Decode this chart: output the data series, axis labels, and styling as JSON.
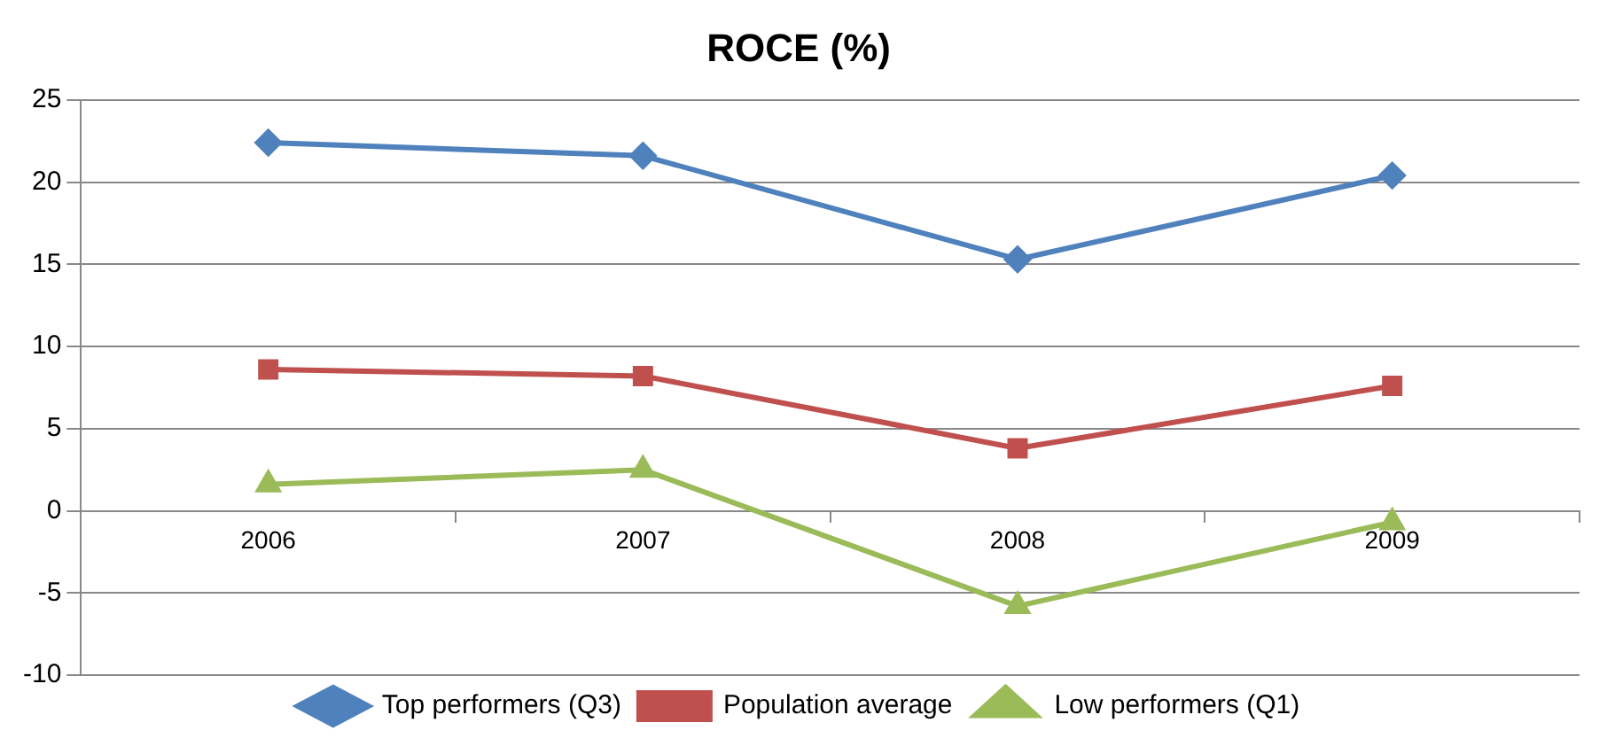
{
  "chart_data": {
    "type": "line",
    "title": "ROCE (%)",
    "categories": [
      "2006",
      "2007",
      "2008",
      "2009"
    ],
    "series": [
      {
        "name": "Top performers (Q3)",
        "color": "#4f81bd",
        "marker": "diamond",
        "values": [
          22.4,
          21.6,
          15.3,
          20.4
        ]
      },
      {
        "name": "Population average",
        "color": "#c0504d",
        "marker": "square",
        "values": [
          8.6,
          8.2,
          3.8,
          7.6
        ]
      },
      {
        "name": "Low performers (Q1)",
        "color": "#9bbb59",
        "marker": "triangle",
        "values": [
          1.6,
          2.5,
          -5.8,
          -0.7
        ]
      }
    ],
    "ylim": [
      -10,
      25
    ],
    "yticks": [
      -10,
      -5,
      0,
      5,
      10,
      15,
      20,
      25
    ],
    "grid": "y",
    "legend": "bottom",
    "line_style": "solid"
  }
}
